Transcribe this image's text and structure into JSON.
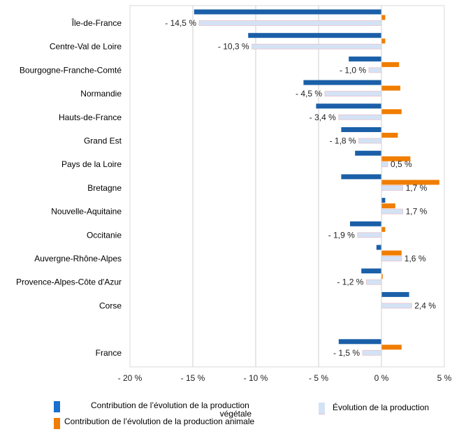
{
  "chart_data": {
    "type": "bar",
    "orientation": "horizontal",
    "categories": [
      "Île-de-France",
      "Centre-Val de Loire",
      "Bourgogne-Franche-Comté",
      "Normandie",
      "Hauts-de-France",
      "Grand Est",
      "Pays de la Loire",
      "Bretagne",
      "Nouvelle-Aquitaine",
      "Occitanie",
      "Auvergne-Rhône-Alpes",
      "Provence-Alpes-Côte d'Azur",
      "Corse",
      "France"
    ],
    "series": [
      {
        "name": "Contribution de l’évolution de la production végétale",
        "color": "#1a5fa8",
        "values": [
          -14.9,
          -10.6,
          -2.6,
          -6.2,
          -5.2,
          -3.2,
          -2.1,
          -3.2,
          0.3,
          -2.5,
          -0.4,
          -1.6,
          2.2,
          -3.4
        ]
      },
      {
        "name": "Contribution de l’évolution de la production animale",
        "color": "#f07d00",
        "values": [
          0.3,
          0.3,
          1.4,
          1.5,
          1.6,
          1.3,
          2.3,
          4.6,
          1.1,
          0.3,
          1.6,
          0.1,
          0,
          1.6
        ]
      },
      {
        "name": "Évolution de la production",
        "color": "#d3e3f5",
        "values": [
          -14.5,
          -10.3,
          -1.0,
          -4.5,
          -3.4,
          -1.8,
          0.5,
          1.7,
          1.7,
          -1.9,
          1.6,
          -1.2,
          2.4,
          -1.5
        ],
        "labels": [
          "- 14,5 %",
          "- 10,3 %",
          "- 1,0 %",
          "- 4,5 %",
          "- 3,4 %",
          "- 1,8 %",
          "0,5 %",
          "1,7 %",
          "1,7 %",
          "- 1,9 %",
          "1,6 %",
          "- 1,2 %",
          "2,4 %",
          "- 1,5 %"
        ]
      }
    ],
    "xlim": [
      -20,
      5
    ],
    "xticks": [
      -20,
      -15,
      -10,
      -5,
      0,
      5
    ],
    "xtick_labels": [
      "- 20 %",
      "- 15 %",
      "- 10 %",
      "- 5 %",
      "0 %",
      "5 %"
    ],
    "grid": true,
    "legend_position": "bottom"
  },
  "legend": {
    "vegetal_line1": "Contribution de l’évolution de la production",
    "vegetal_line2": "végétale",
    "animal": "Contribution de l’évolution de la production animale",
    "total": "Évolution de la production"
  }
}
